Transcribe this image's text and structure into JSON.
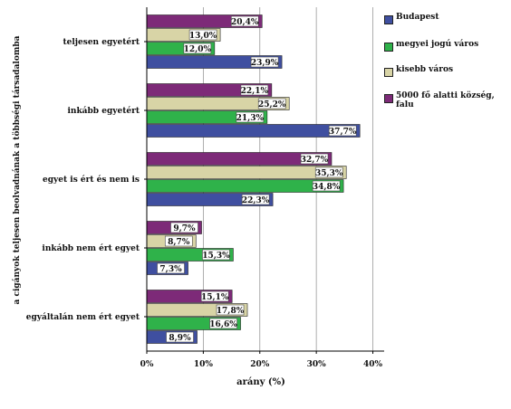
{
  "chart_data": {
    "type": "bar",
    "orientation": "horizontal",
    "title": "",
    "xlabel": "arány (%)",
    "ylabel": "a cigányok teljesen beolvadnának a többségi társadalomba",
    "xlim": [
      0,
      42
    ],
    "xticks": [
      "0%",
      "10%",
      "20%",
      "30%",
      "40%"
    ],
    "grid": true,
    "legend_position": "right",
    "categories": [
      "teljesen egyetért",
      "inkább egyetért",
      "egyet is ért és nem is",
      "inkább nem ért egyet",
      "egyáltalán nem ért egyet"
    ],
    "series": [
      {
        "name": "Budapest",
        "color": "#3f4fa0",
        "values": [
          23.9,
          37.7,
          22.3,
          7.3,
          8.9
        ],
        "labels": [
          "23,9%",
          "37,7%",
          "22,3%",
          "7,3%",
          "8,9%"
        ]
      },
      {
        "name": "megyei jogú város",
        "color": "#2fb24a",
        "values": [
          12.0,
          21.3,
          34.8,
          15.3,
          16.6
        ],
        "labels": [
          "12,0%",
          "21,3%",
          "34,8%",
          "15,3%",
          "16,6%"
        ]
      },
      {
        "name": "kisebb város",
        "color": "#d8d4a6",
        "values": [
          13.0,
          25.2,
          35.3,
          8.7,
          17.8
        ],
        "labels": [
          "13,0%",
          "25,2%",
          "35,3%",
          "8,7%",
          "17,8%"
        ]
      },
      {
        "name": "5000 fő alatti község, falu",
        "color": "#7d2a78",
        "values": [
          20.4,
          22.1,
          32.7,
          9.7,
          15.1
        ],
        "labels": [
          "20,4%",
          "22,1%",
          "32,7%",
          "9,7%",
          "15,1%"
        ]
      }
    ]
  }
}
